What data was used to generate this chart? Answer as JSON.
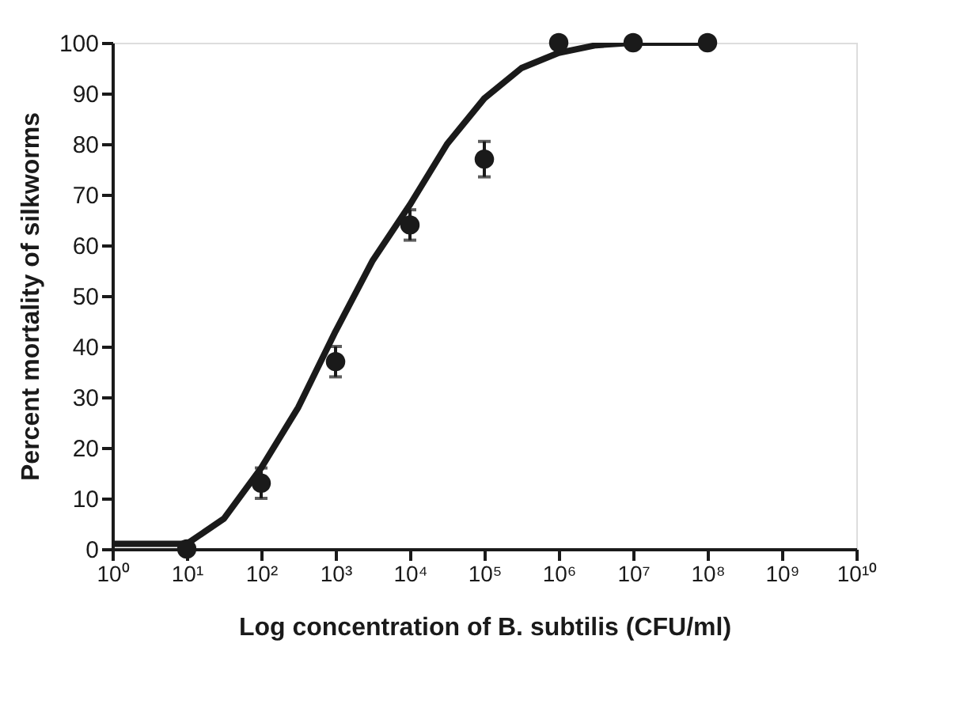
{
  "chart_data": {
    "type": "scatter",
    "xlabel": "Log concentration of B. subtilis (CFU/ml)",
    "ylabel": "Percent mortality of silkworms",
    "log": "x",
    "xlim": [
      1,
      10000000000
    ],
    "xticks": [
      {
        "value": 1,
        "label": "10⁰"
      },
      {
        "value": 10,
        "label": "10¹"
      },
      {
        "value": 100,
        "label": "10²"
      },
      {
        "value": 1000,
        "label": "10³"
      },
      {
        "value": 10000,
        "label": "10⁴"
      },
      {
        "value": 100000,
        "label": "10⁵"
      },
      {
        "value": 1000000,
        "label": "10⁶"
      },
      {
        "value": 10000000,
        "label": "10⁷"
      },
      {
        "value": 100000000,
        "label": "10⁸"
      },
      {
        "value": 1000000000,
        "label": "10⁹"
      },
      {
        "value": 10000000000,
        "label": "10¹⁰"
      }
    ],
    "ylim": [
      0,
      100
    ],
    "yticks": [
      0,
      10,
      20,
      30,
      40,
      50,
      60,
      70,
      80,
      90,
      100
    ],
    "grid": false,
    "series": [
      {
        "type": "line",
        "color": "#1a1a1a",
        "line_style": "solid",
        "x": [
          1,
          10,
          31.6,
          100,
          316,
          1000,
          3162,
          10000,
          31623,
          100000,
          316228,
          1000000,
          3162278,
          10000000,
          100000000
        ],
        "values": [
          1,
          1,
          6,
          16,
          28,
          43,
          57,
          68,
          80,
          89,
          95,
          98,
          99.5,
          100,
          100
        ]
      },
      {
        "color": "#1a1a1a",
        "marker": "circle",
        "x": [
          10,
          100,
          1000,
          10000,
          100000,
          1000000,
          10000000,
          100000000
        ],
        "values": [
          0,
          13,
          37,
          64,
          77,
          100,
          100,
          100
        ],
        "errors": [
          null,
          3,
          3,
          3,
          3.5,
          null,
          null,
          null
        ]
      }
    ]
  }
}
